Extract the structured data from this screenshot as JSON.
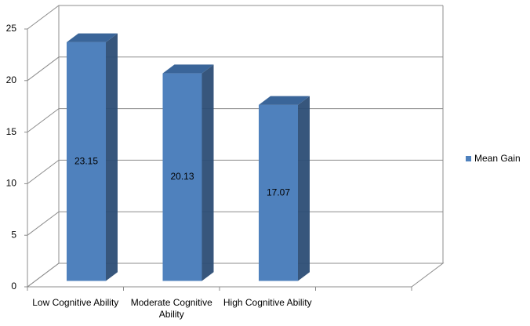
{
  "chart_data": {
    "type": "bar3d",
    "categories": [
      "Low Cognitive Ability",
      "Moderate Cognitive Ability",
      "High Cognitive Ability",
      null
    ],
    "series": [
      {
        "name": "Mean Gain",
        "color": "#4f81bd",
        "values": [
          23.15,
          20.13,
          17.07,
          null
        ]
      }
    ],
    "ylim": [
      0,
      25
    ],
    "yticks": [
      0,
      5,
      10,
      15,
      20,
      25
    ],
    "grid": true,
    "legend": "right"
  }
}
